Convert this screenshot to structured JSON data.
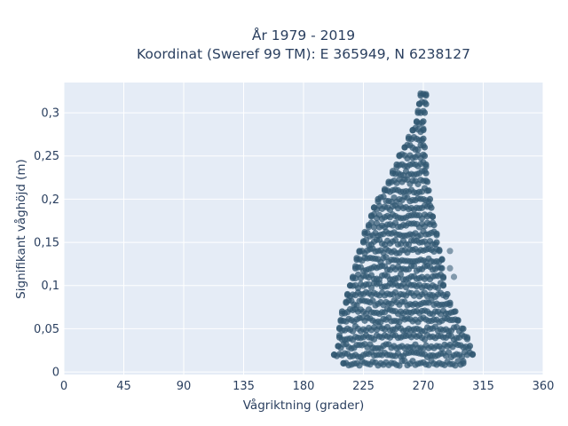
{
  "chart_data": {
    "type": "scatter",
    "title_lines": [
      "År 1979 - 2019",
      "Koordinat (Sweref 99 TM): E 365949, N 6238127"
    ],
    "xlabel": "Vågriktning (grader)",
    "ylabel": "Signifikant våghöjd (m)",
    "xlim": [
      0,
      360
    ],
    "ylim": [
      -0.003,
      0.335
    ],
    "xticks": [
      0,
      45,
      90,
      135,
      180,
      225,
      270,
      315,
      360
    ],
    "xtick_labels": [
      "0",
      "45",
      "90",
      "135",
      "180",
      "225",
      "270",
      "315",
      "360"
    ],
    "yticks": [
      0,
      0.05,
      0.1,
      0.15,
      0.2,
      0.25,
      0.3
    ],
    "ytick_labels": [
      "0",
      "0,05",
      "0,1",
      "0,15",
      "0,2",
      "0,25",
      "0,3"
    ],
    "grid": true,
    "marker_color": "#2f5670",
    "background_color": "#e5ecf6",
    "height_step": 0.01,
    "rows": [
      {
        "h": 0.01,
        "x_min": 210,
        "x_max": 300
      },
      {
        "h": 0.02,
        "x_min": 203,
        "x_max": 307
      },
      {
        "h": 0.03,
        "x_min": 206,
        "x_max": 305
      },
      {
        "h": 0.04,
        "x_min": 207,
        "x_max": 303
      },
      {
        "h": 0.05,
        "x_min": 207,
        "x_max": 300
      },
      {
        "h": 0.06,
        "x_min": 208,
        "x_max": 296
      },
      {
        "h": 0.07,
        "x_min": 209,
        "x_max": 294
      },
      {
        "h": 0.08,
        "x_min": 212,
        "x_max": 290
      },
      {
        "h": 0.09,
        "x_min": 213,
        "x_max": 288
      },
      {
        "h": 0.1,
        "x_min": 215,
        "x_max": 285
      },
      {
        "h": 0.11,
        "x_min": 217,
        "x_max": 285
      },
      {
        "h": 0.12,
        "x_min": 219,
        "x_max": 284
      },
      {
        "h": 0.13,
        "x_min": 220,
        "x_max": 284
      },
      {
        "h": 0.14,
        "x_min": 222,
        "x_max": 282
      },
      {
        "h": 0.15,
        "x_min": 225,
        "x_max": 280
      },
      {
        "h": 0.16,
        "x_min": 226,
        "x_max": 280
      },
      {
        "h": 0.17,
        "x_min": 229,
        "x_max": 278
      },
      {
        "h": 0.18,
        "x_min": 231,
        "x_max": 277
      },
      {
        "h": 0.19,
        "x_min": 233,
        "x_max": 276
      },
      {
        "h": 0.2,
        "x_min": 236,
        "x_max": 275
      },
      {
        "h": 0.21,
        "x_min": 241,
        "x_max": 274
      },
      {
        "h": 0.22,
        "x_min": 244,
        "x_max": 273
      },
      {
        "h": 0.23,
        "x_min": 247,
        "x_max": 272
      },
      {
        "h": 0.24,
        "x_min": 250,
        "x_max": 272
      },
      {
        "h": 0.25,
        "x_min": 252,
        "x_max": 271
      },
      {
        "h": 0.26,
        "x_min": 256,
        "x_max": 271
      },
      {
        "h": 0.27,
        "x_min": 259,
        "x_max": 270
      },
      {
        "h": 0.28,
        "x_min": 262,
        "x_max": 270
      },
      {
        "h": 0.29,
        "x_min": 265,
        "x_max": 270
      },
      {
        "h": 0.3,
        "x_min": 266,
        "x_max": 271
      },
      {
        "h": 0.31,
        "x_min": 267,
        "x_max": 272
      },
      {
        "h": 0.32,
        "x_min": 268,
        "x_max": 272
      }
    ],
    "outliers": [
      {
        "x": 290,
        "y": 0.14
      },
      {
        "x": 293,
        "y": 0.11
      },
      {
        "x": 290,
        "y": 0.12
      }
    ]
  }
}
